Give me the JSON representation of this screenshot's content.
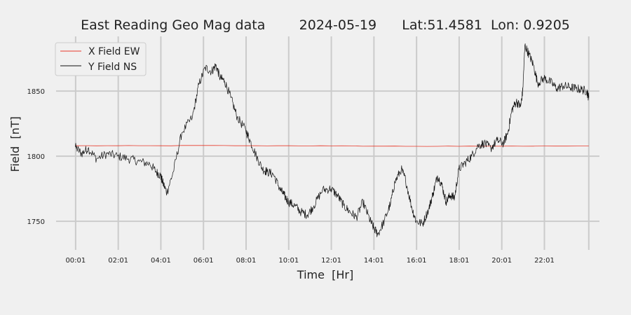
{
  "chart_data": {
    "type": "line",
    "title": "East Reading Geo Mag data        2024-05-19      Lat:51.4581  Lon: 0.9205",
    "xlabel": "Time  [Hr]",
    "ylabel": "Field  [nT]",
    "x_unit": "hours",
    "xlim": [
      -0.9,
      24.6
    ],
    "ylim": [
      1728,
      1892
    ],
    "x_ticks": [
      {
        "value": 0.0167,
        "label": "00:01"
      },
      {
        "value": 2.0167,
        "label": "02:01"
      },
      {
        "value": 4.0167,
        "label": "04:01"
      },
      {
        "value": 6.0167,
        "label": "06:01"
      },
      {
        "value": 8.0167,
        "label": "08:01"
      },
      {
        "value": 10.0167,
        "label": "10:01"
      },
      {
        "value": 12.0167,
        "label": "12:01"
      },
      {
        "value": 14.0167,
        "label": "14:01"
      },
      {
        "value": 16.0167,
        "label": "16:01"
      },
      {
        "value": 18.0167,
        "label": "18:01"
      },
      {
        "value": 20.0167,
        "label": "20:01"
      },
      {
        "value": 22.0167,
        "label": "22:01"
      }
    ],
    "extra_gridlines_x": [
      24.1
    ],
    "y_ticks": [
      1750,
      1800,
      1850
    ],
    "grid": true,
    "legend": {
      "placement": "top-left"
    },
    "series": [
      {
        "name": "X Field EW",
        "color": "#e8392a",
        "x": [
          0,
          2,
          4,
          6,
          8,
          10,
          12,
          14,
          16,
          18,
          20,
          22,
          24.1
        ],
        "y": [
          1808,
          1808,
          1808,
          1808.2,
          1808,
          1808,
          1807.9,
          1807.7,
          1807.6,
          1807.6,
          1807.7,
          1807.8,
          1807.8
        ]
      },
      {
        "name": "Y Field NS",
        "color": "#111111",
        "x": [
          0,
          0.3,
          0.6,
          1.0,
          1.5,
          2.0,
          2.5,
          3.0,
          3.5,
          3.8,
          4.0,
          4.1,
          4.3,
          4.6,
          5.0,
          5.5,
          5.8,
          6.1,
          6.4,
          6.6,
          6.8,
          7.0,
          7.3,
          7.6,
          8.0,
          8.2,
          8.5,
          8.8,
          9.0,
          9.3,
          9.6,
          9.8,
          10.0,
          10.3,
          10.6,
          10.9,
          11.2,
          11.6,
          12.0,
          12.3,
          12.6,
          12.9,
          13.2,
          13.5,
          13.8,
          14.0,
          14.2,
          14.5,
          14.8,
          15.0,
          15.3,
          15.5,
          15.8,
          16.0,
          16.3,
          16.6,
          16.8,
          17.0,
          17.2,
          17.4,
          17.6,
          17.8,
          18.0,
          18.3,
          18.6,
          18.9,
          19.2,
          19.5,
          19.8,
          20.1,
          20.3,
          20.5,
          20.7,
          20.9,
          21.0,
          21.1,
          21.3,
          21.5,
          21.7,
          22.0,
          22.3,
          22.6,
          22.9,
          23.2,
          23.5,
          23.8,
          24.0,
          24.1
        ],
        "y": [
          1807,
          1802,
          1806,
          1798,
          1802,
          1800,
          1798,
          1796,
          1794,
          1788,
          1785,
          1780,
          1772,
          1788,
          1818,
          1830,
          1855,
          1868,
          1865,
          1870,
          1860,
          1858,
          1845,
          1830,
          1820,
          1812,
          1800,
          1790,
          1788,
          1786,
          1775,
          1770,
          1765,
          1762,
          1757,
          1755,
          1762,
          1774,
          1775,
          1770,
          1762,
          1757,
          1753,
          1765,
          1752,
          1745,
          1740,
          1750,
          1764,
          1780,
          1790,
          1782,
          1760,
          1750,
          1748,
          1760,
          1772,
          1785,
          1778,
          1765,
          1770,
          1768,
          1790,
          1795,
          1800,
          1808,
          1810,
          1806,
          1812,
          1810,
          1818,
          1836,
          1842,
          1838,
          1850,
          1885,
          1878,
          1870,
          1856,
          1860,
          1857,
          1852,
          1854,
          1853,
          1852,
          1851,
          1850,
          1845
        ]
      }
    ]
  }
}
